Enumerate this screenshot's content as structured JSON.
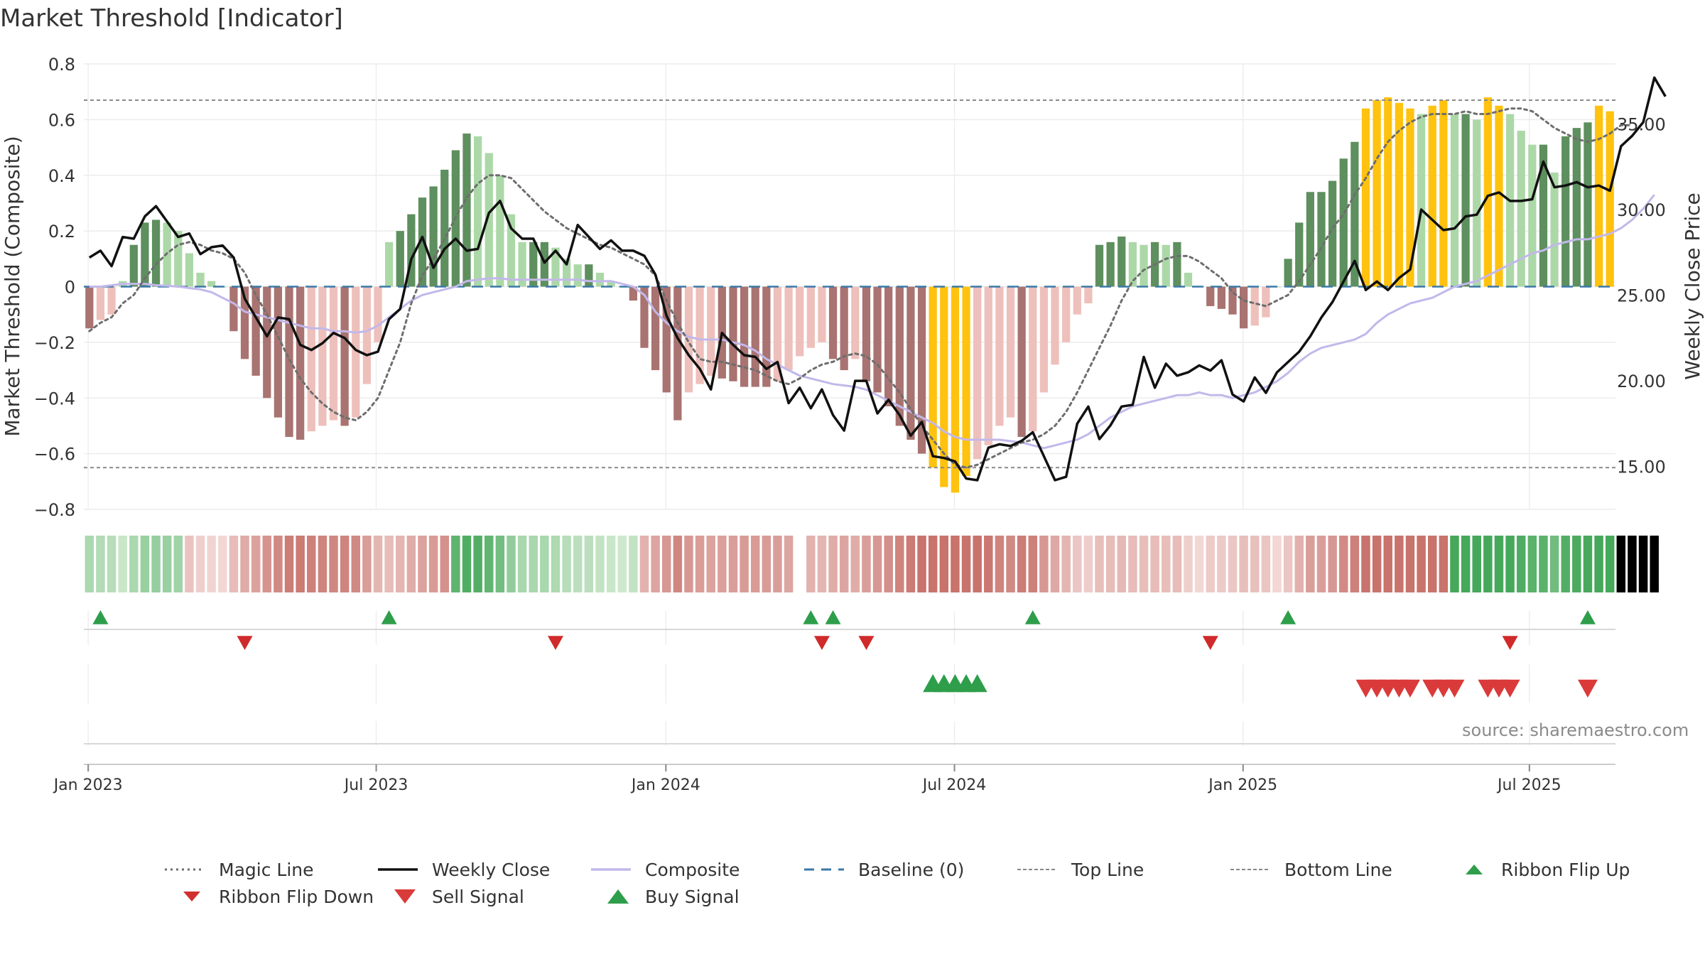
{
  "title": "Market Threshold [Indicator]",
  "source": "source: sharemaestro.com",
  "colors": {
    "dark_green": "#5e8f5e",
    "light_green": "#acd8a8",
    "dark_red": "#a87370",
    "light_red": "#eec0bb",
    "gold": "#ffc20e",
    "magic": "#6e6e6e",
    "close": "#111111",
    "composite": "#c2b8ea",
    "baseline": "#3a78a8",
    "up": "#2e9e4a",
    "down": "#d13030"
  },
  "legend": [
    {
      "label": "Magic Line",
      "icon": "dotted-line-icon"
    },
    {
      "label": "Weekly Close",
      "icon": "solid-line-icon"
    },
    {
      "label": "Composite",
      "icon": "lavender-line-icon"
    },
    {
      "label": "Baseline (0)",
      "icon": "dashed-line-icon"
    },
    {
      "label": "Top Line",
      "icon": "thin-dotted-line-icon"
    },
    {
      "label": "Bottom Line",
      "icon": "thin-dotted-line-icon"
    },
    {
      "label": "Ribbon Flip Up",
      "icon": "triangle-up-icon"
    },
    {
      "label": "Ribbon Flip Down",
      "icon": "triangle-down-icon"
    },
    {
      "label": "Sell Signal",
      "icon": "triangle-down-large-icon"
    },
    {
      "label": "Buy Signal",
      "icon": "triangle-up-large-icon"
    }
  ],
  "chart_data": {
    "type": "bar",
    "ylabel": "Market Threshold (Composite)",
    "y2label": "Weekly Close Price",
    "ylim": [
      -0.8,
      0.8
    ],
    "yticks": [
      "0.8",
      "0.6",
      "0.4",
      "0.2",
      "0",
      "−0.2",
      "−0.4",
      "−0.6",
      "−0.8"
    ],
    "y2lim": [
      12.5,
      38.5
    ],
    "y2ticks": [
      "35.00",
      "30.00",
      "25.00",
      "20.00",
      "15.00"
    ],
    "xticks": [
      "Jan 2023",
      "Jul 2023",
      "Jan 2024",
      "Jul 2024",
      "Jan 2025",
      "Jul 2025"
    ],
    "top_line": 0.67,
    "bottom_line": -0.65,
    "composite_bars": [
      -0.15,
      -0.12,
      -0.1,
      0.02,
      0.15,
      0.23,
      0.24,
      0.23,
      0.2,
      0.12,
      0.05,
      0.02,
      0,
      -0.16,
      -0.26,
      -0.32,
      -0.4,
      -0.47,
      -0.54,
      -0.55,
      -0.52,
      -0.5,
      -0.48,
      -0.5,
      -0.47,
      -0.35,
      -0.2,
      0.16,
      0.2,
      0.26,
      0.32,
      0.36,
      0.42,
      0.49,
      0.55,
      0.54,
      0.48,
      0.4,
      0.26,
      0.16,
      0.16,
      0.16,
      0.14,
      0.1,
      0.08,
      0.08,
      0.05,
      0.02,
      0,
      -0.05,
      -0.22,
      -0.3,
      -0.38,
      -0.48,
      -0.38,
      -0.35,
      -0.32,
      -0.33,
      -0.34,
      -0.36,
      -0.36,
      -0.36,
      -0.34,
      -0.3,
      -0.25,
      -0.22,
      -0.2,
      -0.26,
      -0.3,
      -0.26,
      -0.34,
      -0.38,
      -0.43,
      -0.5,
      -0.55,
      -0.6,
      -0.65,
      -0.72,
      -0.74,
      -0.68,
      -0.62,
      -0.57,
      -0.5,
      -0.47,
      -0.54,
      -0.52,
      -0.38,
      -0.28,
      -0.2,
      -0.1,
      -0.06,
      0.15,
      0.16,
      0.18,
      0.16,
      0.15,
      0.16,
      0.15,
      0.16,
      0.05,
      0,
      -0.07,
      -0.08,
      -0.1,
      -0.15,
      -0.14,
      -0.11,
      0,
      0.1,
      0.23,
      0.34,
      0.34,
      0.38,
      0.46,
      0.52,
      0.64,
      0.67,
      0.68,
      0.66,
      0.64,
      0.62,
      0.65,
      0.67,
      0.62,
      0.62,
      0.6,
      0.68,
      0.65,
      0.62,
      0.56,
      0.51,
      0.51,
      0.41,
      0.54,
      0.57,
      0.59,
      0.65,
      0.63
    ],
    "weekly_close": [
      27.2,
      27.6,
      26.7,
      28.4,
      28.3,
      29.6,
      30.2,
      29.3,
      28.4,
      28.6,
      27.4,
      27.8,
      27.9,
      27.2,
      24.8,
      23.7,
      22.6,
      23.7,
      23.6,
      22.1,
      21.8,
      22.2,
      22.8,
      22.5,
      21.8,
      21.5,
      21.7,
      23.6,
      24.2,
      27.1,
      28.4,
      26.6,
      27.7,
      28.3,
      27.6,
      27.7,
      29.8,
      30.5,
      28.9,
      28.3,
      28.3,
      26.9,
      27.6,
      26.8,
      29.1,
      28.4,
      27.7,
      28.2,
      27.6,
      27.6,
      27.3,
      26.2,
      23.8,
      22.5,
      21.5,
      20.7,
      19.5,
      22.8,
      22.1,
      21.5,
      21.4,
      20.7,
      21.1,
      18.7,
      19.6,
      18.4,
      19.5,
      18.0,
      17.1,
      20.0,
      20.0,
      18.1,
      18.9,
      18.0,
      16.8,
      17.6,
      15.6,
      15.5,
      15.3,
      14.3,
      14.2,
      16.1,
      16.3,
      16.2,
      16.5,
      17.0,
      15.6,
      14.2,
      14.4,
      17.5,
      18.5,
      16.6,
      17.4,
      18.5,
      18.6,
      21.4,
      19.6,
      21.0,
      20.3,
      20.5,
      20.9,
      20.6,
      21.2,
      19.2,
      18.8,
      20.2,
      19.3,
      20.5,
      21.1,
      21.7,
      22.6,
      23.7,
      24.6,
      25.8,
      27.0,
      25.3,
      25.8,
      25.3,
      26.0,
      26.5,
      30.0,
      29.4,
      28.8,
      28.9,
      29.6,
      29.7,
      30.8,
      31.0,
      30.5,
      30.5,
      30.6,
      32.8,
      31.3,
      31.4,
      31.6,
      31.3,
      31.4,
      31.1,
      33.7,
      34.3,
      35.1,
      37.7,
      36.6
    ],
    "composite_line": [
      0,
      0,
      0.005,
      0.01,
      0.01,
      0.01,
      0.005,
      0.003,
      0,
      -0.005,
      -0.01,
      -0.02,
      -0.04,
      -0.06,
      -0.09,
      -0.1,
      -0.11,
      -0.12,
      -0.13,
      -0.14,
      -0.15,
      -0.15,
      -0.16,
      -0.16,
      -0.165,
      -0.16,
      -0.14,
      -0.11,
      -0.08,
      -0.05,
      -0.03,
      -0.02,
      -0.01,
      0,
      0.02,
      0.025,
      0.03,
      0.03,
      0.025,
      0.025,
      0.025,
      0.025,
      0.025,
      0.025,
      0.025,
      0.02,
      0.02,
      0.02,
      0.01,
      0,
      -0.03,
      -0.09,
      -0.13,
      -0.16,
      -0.18,
      -0.19,
      -0.19,
      -0.19,
      -0.2,
      -0.21,
      -0.23,
      -0.26,
      -0.28,
      -0.3,
      -0.32,
      -0.33,
      -0.34,
      -0.35,
      -0.355,
      -0.36,
      -0.37,
      -0.39,
      -0.41,
      -0.43,
      -0.45,
      -0.47,
      -0.49,
      -0.52,
      -0.54,
      -0.55,
      -0.55,
      -0.55,
      -0.55,
      -0.555,
      -0.56,
      -0.57,
      -0.58,
      -0.57,
      -0.56,
      -0.55,
      -0.53,
      -0.5,
      -0.47,
      -0.45,
      -0.43,
      -0.42,
      -0.41,
      -0.4,
      -0.39,
      -0.39,
      -0.38,
      -0.39,
      -0.39,
      -0.4,
      -0.39,
      -0.38,
      -0.36,
      -0.34,
      -0.31,
      -0.27,
      -0.24,
      -0.22,
      -0.21,
      -0.2,
      -0.19,
      -0.17,
      -0.13,
      -0.1,
      -0.08,
      -0.06,
      -0.05,
      -0.04,
      -0.02,
      0,
      0.01,
      0.02,
      0.04,
      0.06,
      0.08,
      0.1,
      0.12,
      0.13,
      0.15,
      0.16,
      0.17,
      0.17,
      0.18,
      0.19,
      0.21,
      0.24,
      0.28,
      0.33
    ],
    "magic_line": [
      -0.16,
      -0.13,
      -0.11,
      -0.06,
      -0.03,
      0.03,
      0.08,
      0.12,
      0.15,
      0.16,
      0.15,
      0.13,
      0.12,
      0.1,
      0.05,
      -0.03,
      -0.1,
      -0.18,
      -0.26,
      -0.33,
      -0.38,
      -0.42,
      -0.45,
      -0.47,
      -0.48,
      -0.45,
      -0.4,
      -0.3,
      -0.2,
      -0.06,
      0.04,
      0.1,
      0.17,
      0.25,
      0.32,
      0.37,
      0.4,
      0.4,
      0.39,
      0.35,
      0.31,
      0.27,
      0.24,
      0.21,
      0.19,
      0.17,
      0.15,
      0.14,
      0.12,
      0.1,
      0.08,
      0.04,
      -0.05,
      -0.13,
      -0.2,
      -0.26,
      -0.27,
      -0.27,
      -0.28,
      -0.29,
      -0.3,
      -0.32,
      -0.34,
      -0.35,
      -0.33,
      -0.3,
      -0.28,
      -0.27,
      -0.25,
      -0.24,
      -0.25,
      -0.28,
      -0.33,
      -0.38,
      -0.44,
      -0.5,
      -0.55,
      -0.6,
      -0.64,
      -0.65,
      -0.64,
      -0.62,
      -0.6,
      -0.58,
      -0.56,
      -0.55,
      -0.53,
      -0.5,
      -0.45,
      -0.38,
      -0.3,
      -0.22,
      -0.14,
      -0.05,
      0.02,
      0.06,
      0.08,
      0.1,
      0.11,
      0.11,
      0.09,
      0.06,
      0.03,
      -0.02,
      -0.05,
      -0.06,
      -0.07,
      -0.05,
      -0.03,
      0.02,
      0.08,
      0.14,
      0.21,
      0.26,
      0.33,
      0.39,
      0.46,
      0.52,
      0.56,
      0.59,
      0.61,
      0.62,
      0.62,
      0.62,
      0.63,
      0.62,
      0.62,
      0.63,
      0.64,
      0.64,
      0.63,
      0.6,
      0.57,
      0.55,
      0.53,
      0.52,
      0.53,
      0.55,
      0.58,
      0.58
    ],
    "ribbon_flip_up": [
      1,
      27,
      65,
      67,
      85,
      108,
      135
    ],
    "ribbon_flip_down": [
      14,
      42,
      66,
      70,
      101,
      128
    ],
    "buy_signal": [
      76,
      77,
      78,
      79,
      80
    ],
    "sell_signal": [
      115,
      116,
      117,
      118,
      119,
      121,
      122,
      123,
      126,
      127,
      128,
      135
    ]
  }
}
